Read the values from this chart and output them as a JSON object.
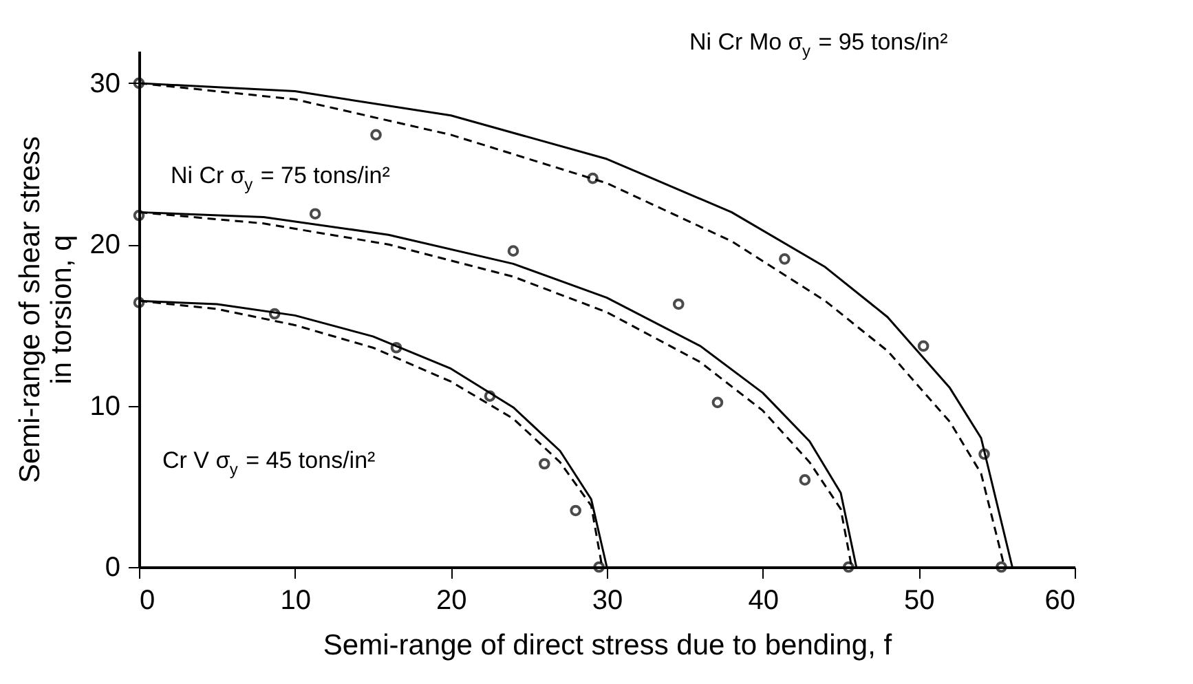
{
  "chart_data": {
    "type": "scatter",
    "xlabel": "Semi-range of direct stress due to bending, f",
    "ylabel": "Semi-range of shear stress\nin torsion, q",
    "xlim": [
      0,
      60
    ],
    "ylim": [
      0,
      32
    ],
    "xticks": [
      0,
      10,
      20,
      30,
      40,
      50,
      60
    ],
    "yticks": [
      0,
      10,
      20,
      30
    ],
    "grid": false,
    "series": [
      {
        "marker": "circle",
        "color": "#000000",
        "x": [
          0,
          8.7,
          16.5,
          22.5,
          26.0,
          28.0,
          29.5
        ],
        "values": [
          16.4,
          15.7,
          13.6,
          10.6,
          6.4,
          3.5,
          0
        ]
      },
      {
        "marker": "circle",
        "color": "#000000",
        "x": [
          0,
          11.3,
          24.0,
          34.6,
          37.1,
          42.7,
          45.5
        ],
        "values": [
          21.8,
          21.9,
          19.6,
          16.3,
          10.2,
          5.4,
          0
        ]
      },
      {
        "marker": "circle",
        "color": "#000000",
        "x": [
          0,
          15.2,
          29.1,
          41.4,
          50.3,
          54.2,
          55.3
        ],
        "values": [
          30.0,
          26.8,
          24.1,
          19.1,
          13.7,
          7.0,
          0
        ]
      },
      {
        "type": "line",
        "line_style": "solid",
        "marker": "none",
        "color": "#000000",
        "x": [
          0,
          5,
          10,
          15,
          20,
          24,
          27,
          29,
          30
        ],
        "values": [
          16.5,
          16.3,
          15.6,
          14.3,
          12.3,
          9.9,
          7.2,
          4.2,
          0
        ]
      },
      {
        "type": "line",
        "line_style": "dashed",
        "marker": "none",
        "color": "#000000",
        "x": [
          0,
          5,
          10,
          15,
          20,
          24,
          27,
          29,
          29.7
        ],
        "values": [
          16.5,
          16.0,
          15.0,
          13.6,
          11.5,
          9.2,
          6.5,
          3.8,
          0
        ]
      },
      {
        "type": "line",
        "line_style": "solid",
        "marker": "none",
        "color": "#000000",
        "x": [
          0,
          8,
          16,
          24,
          30,
          36,
          40,
          43,
          45,
          46
        ],
        "values": [
          22.0,
          21.7,
          20.6,
          18.8,
          16.7,
          13.7,
          10.8,
          7.8,
          4.6,
          0
        ]
      },
      {
        "type": "line",
        "line_style": "dashed",
        "marker": "none",
        "color": "#000000",
        "x": [
          0,
          8,
          16,
          24,
          30,
          36,
          40,
          43,
          45,
          45.7
        ],
        "values": [
          22.0,
          21.3,
          20.0,
          18.0,
          15.8,
          12.7,
          9.7,
          6.5,
          3.6,
          0
        ]
      },
      {
        "type": "line",
        "line_style": "solid",
        "marker": "none",
        "color": "#000000",
        "x": [
          0,
          10,
          20,
          30,
          38,
          44,
          48,
          52,
          54,
          56
        ],
        "values": [
          30.0,
          29.5,
          28.0,
          25.3,
          22.0,
          18.6,
          15.5,
          11.1,
          8.0,
          0
        ]
      },
      {
        "type": "line",
        "line_style": "dashed",
        "marker": "none",
        "color": "#000000",
        "x": [
          0,
          10,
          20,
          30,
          38,
          44,
          48,
          52,
          54,
          55.5
        ],
        "values": [
          30.0,
          29.0,
          26.8,
          23.8,
          20.2,
          16.5,
          13.4,
          9.0,
          5.8,
          0
        ]
      }
    ],
    "annotations": [
      "Ni Cr Mo σ$_{y}$ = 95 tons/in²",
      "Ni Cr σ$_{y}$ = 75 tons/in²",
      "Cr V σ$_{y}$ = 45 tons/in²"
    ]
  }
}
